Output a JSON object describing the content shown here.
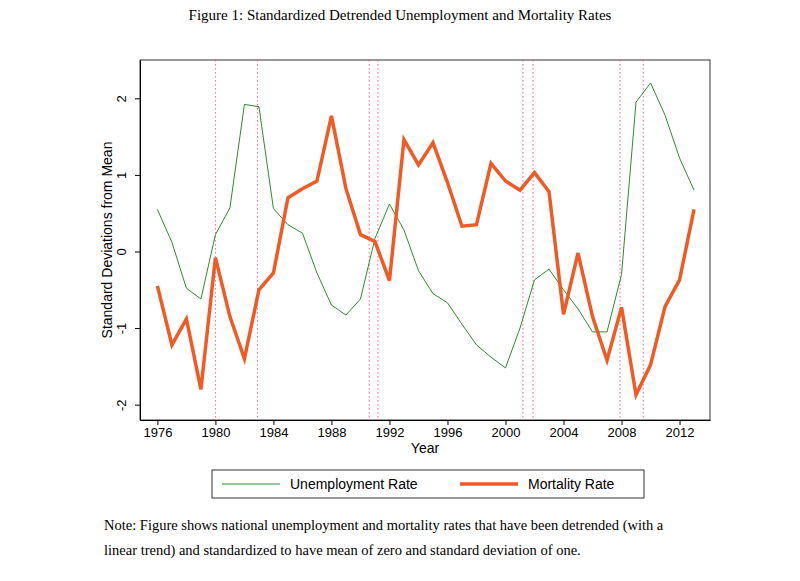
{
  "chart_data": {
    "type": "line",
    "title": "Figure 1: Standardized Detrended Unemployment and Mortality Rates",
    "x_label": "Year",
    "y_label": "Standard Deviations from Mean",
    "note": [
      "Note: Figure shows national unemployment and mortality rates that have been detrended (with a",
      "linear trend) and standardized to have mean of zero and standard deviation of one."
    ],
    "x": [
      1976,
      1977,
      1978,
      1979,
      1980,
      1981,
      1982,
      1983,
      1984,
      1985,
      1986,
      1987,
      1988,
      1989,
      1990,
      1991,
      1992,
      1993,
      1994,
      1995,
      1996,
      1997,
      1998,
      1999,
      2000,
      2001,
      2002,
      2003,
      2004,
      2005,
      2006,
      2007,
      2008,
      2009,
      2010,
      2011,
      2012,
      2013
    ],
    "series": [
      {
        "name": "Unemployment Rate",
        "color": "#2e8b2e",
        "values": [
          0.55,
          0.12,
          -0.48,
          -0.62,
          0.22,
          0.57,
          1.92,
          1.89,
          0.56,
          0.35,
          0.24,
          -0.28,
          -0.7,
          -0.83,
          -0.62,
          0.17,
          0.62,
          0.28,
          -0.25,
          -0.55,
          -0.67,
          -0.95,
          -1.22,
          -1.38,
          -1.52,
          -1.0,
          -0.37,
          -0.23,
          -0.5,
          -0.75,
          -1.05,
          -1.05,
          -0.3,
          1.95,
          2.2,
          1.78,
          1.22,
          0.8
        ]
      },
      {
        "name": "Mortality Rate",
        "color": "#f05a24",
        "values": [
          -0.45,
          -1.22,
          -0.88,
          -1.8,
          -0.08,
          -0.85,
          -1.4,
          -0.5,
          -0.28,
          0.7,
          0.82,
          0.92,
          1.77,
          0.82,
          0.22,
          0.13,
          -0.38,
          1.46,
          1.13,
          1.42,
          0.9,
          0.33,
          0.35,
          1.15,
          0.92,
          0.8,
          1.03,
          0.78,
          -0.82,
          -0.02,
          -0.85,
          -1.42,
          -0.73,
          -1.87,
          -1.48,
          -0.72,
          -0.37,
          0.55
        ]
      }
    ],
    "vlines": [
      1980,
      1982.9,
      1990.6,
      1991.2,
      2001.2,
      2001.9,
      2007.9,
      2009.5
    ],
    "xlim": [
      1974.8,
      2014.1
    ],
    "xticks": [
      1976,
      1980,
      1984,
      1988,
      1992,
      1996,
      2000,
      2004,
      2008,
      2012
    ],
    "ylim": [
      -2.2,
      2.5
    ],
    "yticks": [
      -2,
      -1,
      0,
      1,
      2
    ],
    "grid": false,
    "legend": "bottom"
  }
}
